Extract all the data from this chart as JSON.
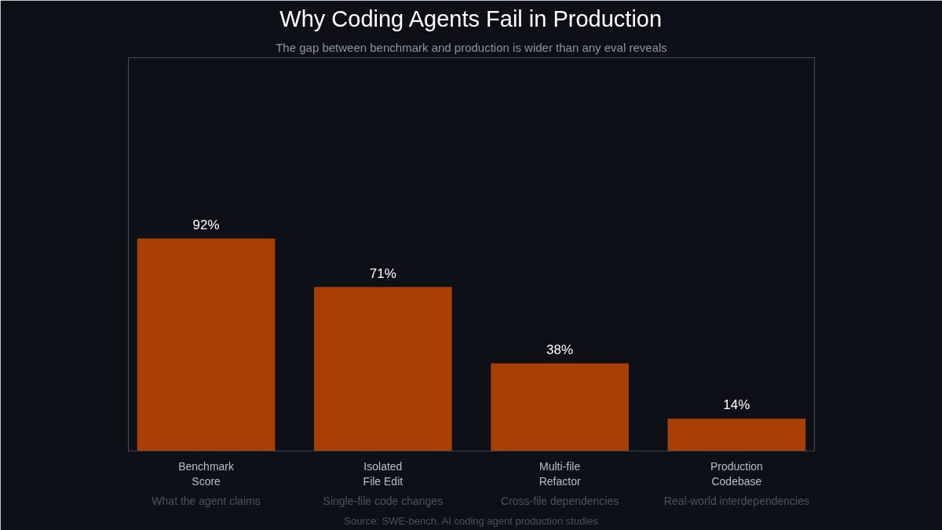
{
  "chart_data": {
    "type": "bar",
    "title": "Why Coding Agents Fail in Production",
    "subtitle": "The gap between benchmark and production is wider than any eval reveals",
    "categories": [
      "Benchmark\nScore",
      "Isolated\nFile Edit",
      "Multi-file\nRefactor",
      "Production\nCodebase"
    ],
    "values": [
      92,
      71,
      38,
      14
    ],
    "color": "#a84006",
    "value_labels": [
      "92%",
      "71%",
      "38%",
      "14%"
    ],
    "tick_labels": "x",
    "grid": false,
    "annotations": [
      "What the agent claims",
      "Single-file code changes",
      "Cross-file dependencies",
      "Real-world interdependencies",
      "Source: SWE-bench, AI coding agent production studies"
    ]
  }
}
